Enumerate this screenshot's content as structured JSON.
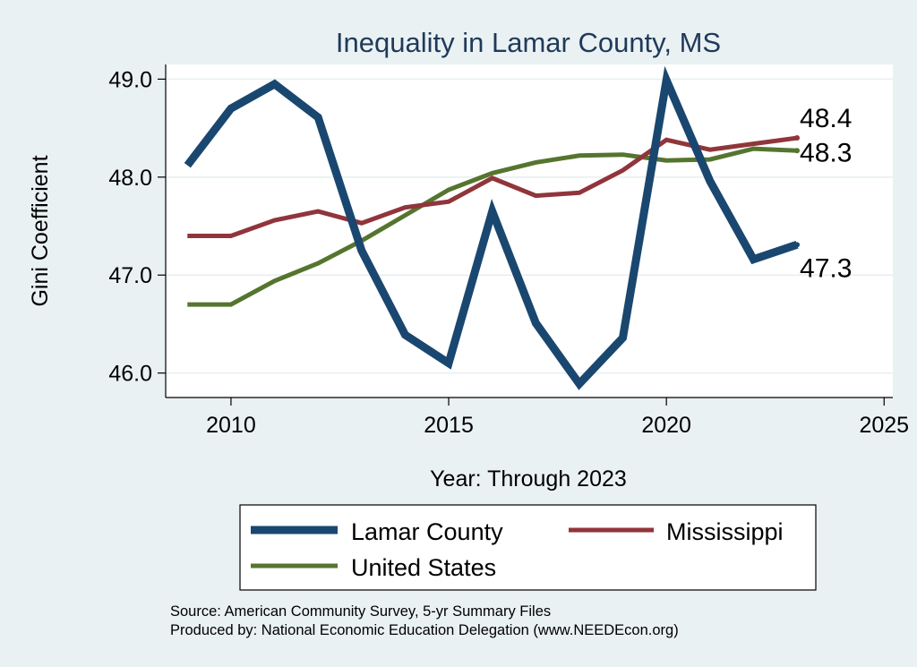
{
  "chart_data": {
    "type": "line",
    "title": "Inequality in Lamar County, MS",
    "xlabel": "Year: Through 2023",
    "ylabel": "Gini Coefficient",
    "xlim": [
      2008.5,
      2025.2
    ],
    "ylim": [
      45.75,
      49.15
    ],
    "xticks": [
      2010,
      2015,
      2020,
      2025
    ],
    "xtick_labels": [
      "2010",
      "2015",
      "2020",
      "2025"
    ],
    "yticks": [
      46,
      47,
      48,
      49
    ],
    "ytick_labels": [
      "46.0",
      "47.0",
      "48.0",
      "49.0"
    ],
    "grid": true,
    "legend_position": "bottom",
    "series": [
      {
        "name": "Lamar County",
        "color": "#1a476f",
        "x": [
          2009,
          2010,
          2011,
          2012,
          2013,
          2014,
          2015,
          2016,
          2017,
          2018,
          2019,
          2020,
          2021,
          2022,
          2023
        ],
        "values": [
          48.12,
          48.7,
          48.95,
          48.61,
          47.25,
          46.39,
          46.1,
          47.65,
          46.51,
          45.89,
          46.36,
          48.99,
          47.96,
          47.16,
          47.31
        ],
        "end_label": "47.3"
      },
      {
        "name": "Mississippi",
        "color": "#90353b",
        "x": [
          2009,
          2010,
          2011,
          2012,
          2013,
          2014,
          2015,
          2016,
          2017,
          2018,
          2019,
          2020,
          2021,
          2022,
          2023
        ],
        "values": [
          47.4,
          47.4,
          47.56,
          47.65,
          47.53,
          47.69,
          47.75,
          47.99,
          47.81,
          47.84,
          48.07,
          48.38,
          48.28,
          48.34,
          48.4
        ],
        "end_label": "48.4"
      },
      {
        "name": "United States",
        "color": "#55752f",
        "x": [
          2009,
          2010,
          2011,
          2012,
          2013,
          2014,
          2015,
          2016,
          2017,
          2018,
          2019,
          2020,
          2021,
          2022,
          2023
        ],
        "values": [
          46.7,
          46.7,
          46.94,
          47.12,
          47.35,
          47.61,
          47.87,
          48.04,
          48.15,
          48.22,
          48.23,
          48.17,
          48.18,
          48.29,
          48.27
        ],
        "end_label": "48.3"
      }
    ]
  },
  "legend": {
    "items": [
      "Lamar County",
      "Mississippi",
      "United States"
    ]
  },
  "source": {
    "line1": "Source: American Community Survey, 5-yr Summary Files",
    "line2": "Produced by: National Economic Education Delegation (www.NEEDEcon.org)"
  }
}
